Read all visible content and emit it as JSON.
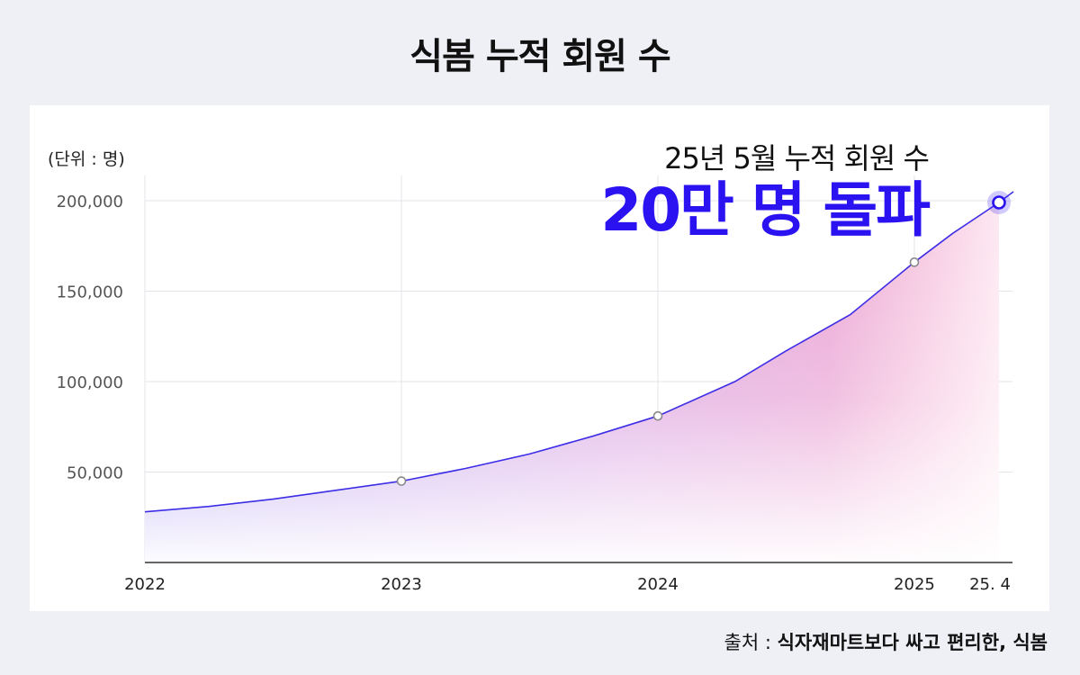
{
  "title": "식봄 누적 회원 수",
  "headline": {
    "sub": "25년 5월 누적 회원 수",
    "main": "20만 명 돌파"
  },
  "source": {
    "prefix": "출처 : ",
    "text": "식자재마트보다 싸고 편리한, 식봄"
  },
  "colors": {
    "line": "#3d2ee6",
    "accent": "#2b12f0",
    "area_left": "#a48ef0",
    "area_right": "#f3a0c8",
    "grid": "#e4e4e8",
    "axis": "#333333"
  },
  "chart_data": {
    "type": "area",
    "unit_label": "(단위 : 명)",
    "x_ticks": [
      {
        "label": "2022",
        "x": 2022.0
      },
      {
        "label": "2023",
        "x": 2023.0
      },
      {
        "label": "2024",
        "x": 2024.0
      },
      {
        "label": "2025",
        "x": 2025.0
      },
      {
        "label": "25. 4",
        "x": 2025.33
      }
    ],
    "y_ticks": [
      {
        "label": "200,000",
        "value": 200000
      },
      {
        "label": "150,000",
        "value": 150000
      },
      {
        "label": "100,000",
        "value": 100000
      },
      {
        "label": "50,000",
        "value": 50000
      }
    ],
    "ylim": [
      0,
      200000
    ],
    "xlim": [
      2022.0,
      2025.33
    ],
    "series": [
      {
        "points": [
          {
            "x": 2022.0,
            "y": 28000
          },
          {
            "x": 2022.25,
            "y": 31000
          },
          {
            "x": 2022.5,
            "y": 35000
          },
          {
            "x": 2022.75,
            "y": 40000
          },
          {
            "x": 2023.0,
            "y": 45000
          },
          {
            "x": 2023.25,
            "y": 52000
          },
          {
            "x": 2023.5,
            "y": 60000
          },
          {
            "x": 2023.75,
            "y": 70000
          },
          {
            "x": 2024.0,
            "y": 81000
          },
          {
            "x": 2024.3,
            "y": 100000
          },
          {
            "x": 2024.5,
            "y": 117000
          },
          {
            "x": 2024.75,
            "y": 137000
          },
          {
            "x": 2025.0,
            "y": 166000
          },
          {
            "x": 2025.15,
            "y": 182000
          },
          {
            "x": 2025.33,
            "y": 199000
          }
        ]
      }
    ],
    "markers": [
      {
        "x": 2023.0,
        "y": 45000
      },
      {
        "x": 2024.0,
        "y": 81000
      },
      {
        "x": 2025.0,
        "y": 166000
      }
    ],
    "highlight": {
      "x": 2025.33,
      "y": 199000
    }
  }
}
